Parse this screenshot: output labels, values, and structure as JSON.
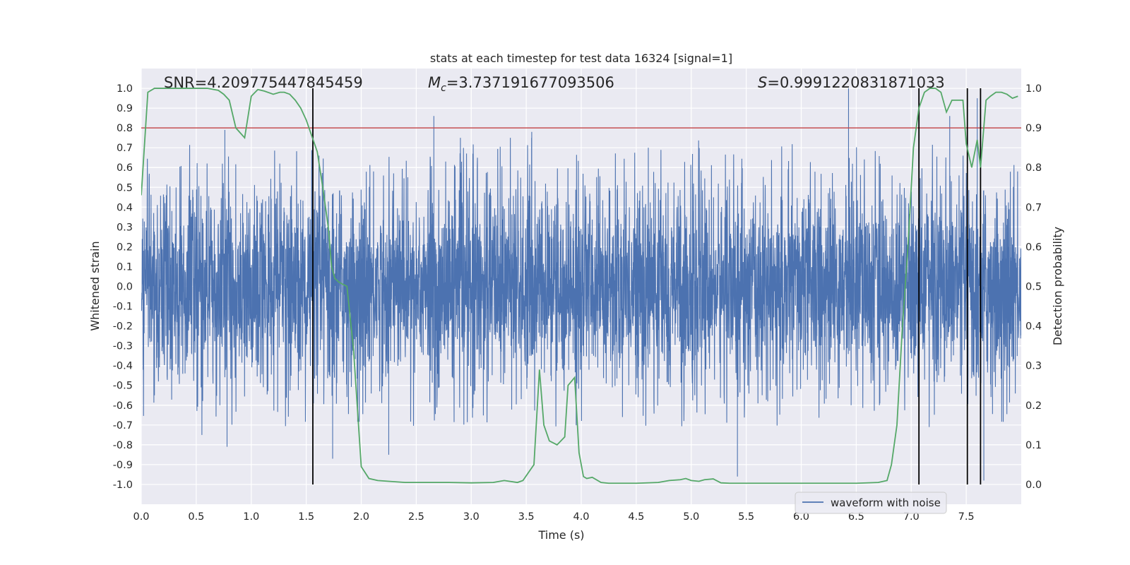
{
  "chart_data": {
    "type": "line",
    "title": "stats at each timestep for test data 16324 [signal=1]",
    "xlabel": "Time (s)",
    "ylabel_left": "Whitened strain",
    "ylabel_right": "Detection probability",
    "xlim": [
      0.0,
      8.0
    ],
    "ylim_left": [
      -1.1,
      1.1
    ],
    "ylim_right": [
      -0.05,
      1.05
    ],
    "xticks": [
      "0.0",
      "0.5",
      "1.0",
      "1.5",
      "2.0",
      "2.5",
      "3.0",
      "3.5",
      "4.0",
      "4.5",
      "5.0",
      "5.5",
      "6.0",
      "6.5",
      "7.0",
      "7.5"
    ],
    "yticks_left": [
      "1.0",
      "0.9",
      "0.8",
      "0.7",
      "0.6",
      "0.5",
      "0.4",
      "0.3",
      "0.2",
      "0.1",
      "0.0",
      "-0.1",
      "-0.2",
      "-0.3",
      "-0.4",
      "-0.5",
      "-0.6",
      "-0.7",
      "-0.8",
      "-0.9",
      "-1.0"
    ],
    "yticks_right": [
      "1.0",
      "0.9",
      "0.8",
      "0.7",
      "0.6",
      "0.5",
      "0.4",
      "0.3",
      "0.2",
      "0.1",
      "0.0"
    ],
    "annotations": {
      "snr": "SNR=4.209775447845459",
      "mc_symbol": "M",
      "mc_subscript": "c",
      "mc_value": "=3.737191677093506",
      "s_symbol": "S",
      "s_value": "=0.9991220831871033"
    },
    "legend": {
      "label": "waveform with noise",
      "placement": "lower-right"
    },
    "threshold": {
      "value_right_axis": 0.9,
      "color": "#c44e52"
    },
    "vertical_lines_x": [
      1.56,
      7.07,
      7.51,
      7.63
    ],
    "waveform": {
      "color": "#4c72b0",
      "duration_s": 8.0,
      "typical_envelope": 0.42,
      "peaks": [
        {
          "x": 0.76,
          "y": 0.79
        },
        {
          "x": 0.78,
          "y": -0.81
        },
        {
          "x": 1.74,
          "y": -0.87
        },
        {
          "x": 2.25,
          "y": -0.85
        },
        {
          "x": 2.66,
          "y": 0.86
        },
        {
          "x": 3.55,
          "y": 0.78
        },
        {
          "x": 5.42,
          "y": -0.96
        },
        {
          "x": 6.43,
          "y": 1.0
        },
        {
          "x": 7.6,
          "y": 0.95
        },
        {
          "x": 7.66,
          "y": -0.98
        },
        {
          "x": 7.35,
          "y": 0.86
        }
      ]
    },
    "series": [
      {
        "color": "#55a868",
        "axis": "right",
        "x": [
          0.0,
          0.06,
          0.12,
          0.2,
          0.3,
          0.4,
          0.5,
          0.6,
          0.7,
          0.75,
          0.8,
          0.86,
          0.94,
          1.0,
          1.06,
          1.12,
          1.2,
          1.26,
          1.3,
          1.35,
          1.4,
          1.45,
          1.5,
          1.55,
          1.6,
          1.65,
          1.7,
          1.73,
          1.76,
          1.8,
          1.87,
          1.93,
          2.0,
          2.07,
          2.15,
          2.25,
          2.4,
          2.6,
          2.8,
          3.0,
          3.2,
          3.3,
          3.42,
          3.47,
          3.52,
          3.57,
          3.62,
          3.66,
          3.71,
          3.78,
          3.85,
          3.88,
          3.94,
          3.98,
          4.02,
          4.05,
          4.1,
          4.18,
          4.25,
          4.35,
          4.5,
          4.7,
          4.8,
          4.9,
          4.95,
          5.0,
          5.07,
          5.12,
          5.2,
          5.27,
          5.35,
          5.5,
          5.7,
          5.9,
          6.1,
          6.3,
          6.5,
          6.7,
          6.78,
          6.82,
          6.87,
          6.92,
          6.97,
          7.02,
          7.07,
          7.12,
          7.17,
          7.22,
          7.27,
          7.32,
          7.37,
          7.42,
          7.47,
          7.5,
          7.55,
          7.6,
          7.63,
          7.68,
          7.72,
          7.77,
          7.82,
          7.87,
          7.92,
          7.97
        ],
        "y": [
          0.73,
          0.99,
          1.0,
          1.0,
          1.0,
          1.0,
          1.0,
          1.0,
          0.995,
          0.985,
          0.97,
          0.9,
          0.875,
          0.98,
          0.997,
          0.993,
          0.985,
          0.99,
          0.99,
          0.985,
          0.97,
          0.95,
          0.92,
          0.88,
          0.84,
          0.75,
          0.65,
          0.55,
          0.52,
          0.51,
          0.5,
          0.34,
          0.045,
          0.015,
          0.01,
          0.008,
          0.005,
          0.005,
          0.005,
          0.004,
          0.005,
          0.01,
          0.005,
          0.01,
          0.03,
          0.05,
          0.29,
          0.15,
          0.11,
          0.1,
          0.12,
          0.25,
          0.27,
          0.08,
          0.02,
          0.015,
          0.018,
          0.005,
          0.003,
          0.003,
          0.003,
          0.005,
          0.01,
          0.012,
          0.015,
          0.01,
          0.008,
          0.012,
          0.014,
          0.004,
          0.003,
          0.003,
          0.003,
          0.003,
          0.003,
          0.003,
          0.003,
          0.005,
          0.01,
          0.05,
          0.15,
          0.4,
          0.6,
          0.85,
          0.95,
          0.99,
          1.0,
          1.0,
          0.99,
          0.94,
          0.97,
          0.97,
          0.97,
          0.86,
          0.8,
          0.87,
          0.8,
          0.97,
          0.98,
          0.99,
          0.99,
          0.985,
          0.975,
          0.98
        ]
      }
    ]
  }
}
